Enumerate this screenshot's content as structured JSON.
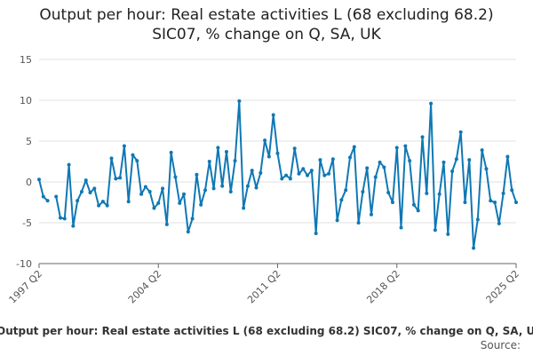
{
  "title_line1": "Output per hour: Real estate activities L (68 excluding 68.2)",
  "title_line2": "SIC07, % change on Q, SA, UK",
  "footer_title": "Output per hour: Real estate activities L (68 excluding 68.2) SIC07, % change on Q, SA, UK",
  "footer_source": "Source:",
  "colors": {
    "line": "#0f78b4",
    "grid": "#e0e0e0",
    "axis": "#666666"
  },
  "chart_data": {
    "type": "line",
    "title": "Output per hour: Real estate activities L (68 excluding 68.2) SIC07, % change on Q, SA, UK",
    "xlabel": "",
    "ylabel": "",
    "ylim": [
      -10,
      15
    ],
    "yticks": [
      15,
      10,
      5,
      0,
      -5,
      -10
    ],
    "x_tick_labels": [
      "1997 Q2",
      "2004 Q2",
      "2011 Q2",
      "2018 Q2",
      "2025 Q2"
    ],
    "grid": true,
    "series": [
      {
        "values": [
          [
            0.3,
            -1.8,
            -2.3,
            null,
            -1.8,
            -4.4,
            -4.5,
            2.1,
            -5.4,
            -2.3,
            -1.2,
            0.2,
            -1.3,
            -0.8,
            -2.9,
            -2.4,
            -2.9,
            2.9,
            0.4,
            0.5,
            4.4,
            -2.4,
            3.3,
            2.6,
            -1.5,
            -0.6,
            -1.2,
            -3.2,
            -2.6,
            -0.8,
            -5.2,
            3.6,
            0.6,
            -2.6,
            -1.5,
            -6.1,
            -4.5,
            0.9,
            -2.8,
            -1.0,
            2.5,
            -0.8,
            4.2,
            -0.5,
            3.7,
            -1.2,
            2.6,
            9.9,
            -3.2,
            -0.5,
            1.4,
            -0.7,
            1.1,
            5.1,
            3.1,
            8.2,
            3.5,
            0.4,
            0.8,
            0.4,
            4.1,
            1.0,
            1.6,
            0.8,
            1.4,
            -6.3,
            2.7,
            0.8,
            1.0,
            2.8,
            -4.7,
            -2.2,
            -1.0,
            3.0,
            4.3,
            -5.0,
            -1.2,
            1.7,
            -4.0,
            0.6,
            2.4,
            1.8,
            -1.3,
            -2.5,
            4.2,
            -5.6,
            4.4,
            2.6,
            -2.8,
            -3.5,
            5.5,
            -1.4,
            9.6,
            -5.9,
            -1.5,
            2.4,
            -6.4,
            1.3,
            2.8,
            6.1,
            -2.5,
            2.7,
            -8.1,
            -4.6,
            3.9,
            1.6,
            -2.3,
            -2.5,
            -5.1,
            -1.4,
            3.1,
            -1.0,
            -2.5
          ]
        ]
      }
    ]
  }
}
